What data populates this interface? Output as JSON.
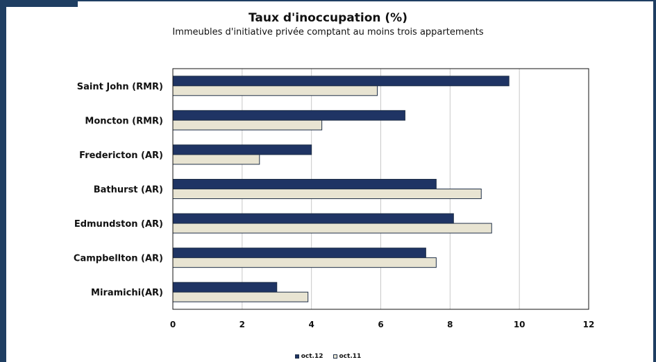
{
  "chart_data": {
    "type": "bar",
    "orientation": "horizontal",
    "title": "Taux d'inoccupation (%)",
    "subtitle": "Immeubles d'initiative privée comptant au moins trois appartements",
    "categories": [
      "Saint John (RMR)",
      "Moncton (RMR)",
      "Fredericton (AR)",
      "Bathurst (AR)",
      "Edmundston (AR)",
      "Campbellton (AR)",
      "Miramichi(AR)"
    ],
    "series": [
      {
        "name": "oct.12",
        "color": "#1f3464",
        "values": [
          9.7,
          6.7,
          4.0,
          7.6,
          8.1,
          7.3,
          3.0
        ]
      },
      {
        "name": "oct.11",
        "color": "#e8e4d2",
        "values": [
          5.9,
          4.3,
          2.5,
          8.9,
          9.2,
          7.6,
          3.9
        ]
      }
    ],
    "xlim": [
      0,
      12
    ],
    "xticks": [
      "0",
      "2",
      "4",
      "6",
      "8",
      "10",
      "12"
    ],
    "grid": true,
    "legend_position": "bottom"
  },
  "colors": {
    "frame": "#1f3e62",
    "bar_outline": "#1f2f47",
    "grid": "#c8c8c8"
  }
}
